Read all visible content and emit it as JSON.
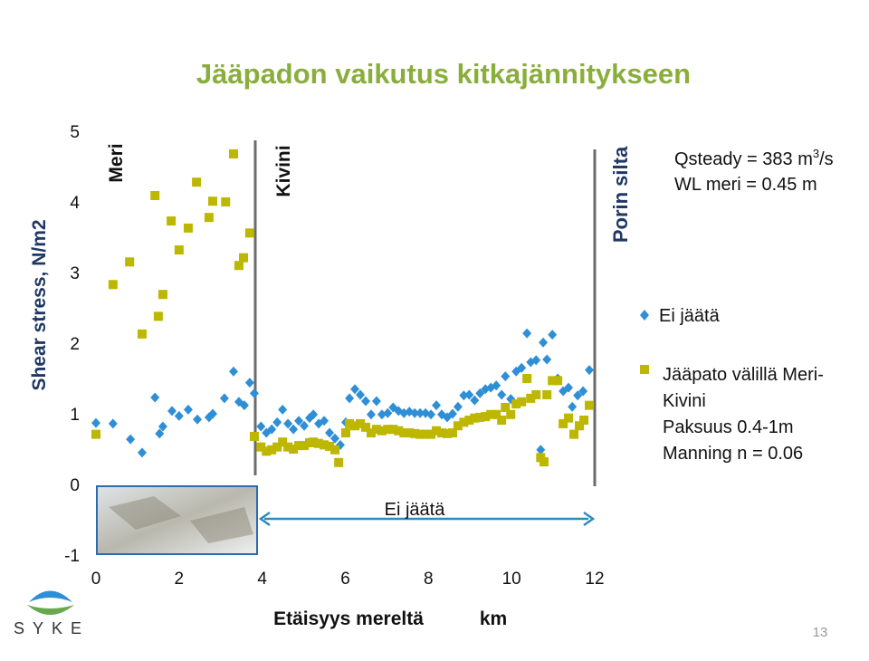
{
  "chart_data": {
    "type": "scatter",
    "title": "Jääpadon vaikutus kitkajännitykseen",
    "ylabel": "Shear stress, N/m2",
    "xlabel": "Etäisyys mereltä",
    "xunit": "km",
    "xlim": [
      0,
      12
    ],
    "ylim": [
      -1,
      5
    ],
    "xticks": [
      0,
      2,
      4,
      6,
      8,
      10,
      12
    ],
    "yticks": [
      5,
      4,
      3,
      2,
      1,
      0,
      -1
    ],
    "region_labels": [
      "Meri",
      "Kivini",
      "Porin silta"
    ],
    "span_label": "Ei jäätä",
    "conditions": [
      [
        "Qsteady = 383 m",
        "3",
        "/s"
      ],
      "WL meri = 0.45 m"
    ],
    "legend_notes": [
      "Paksuus 0.4-1m",
      "Manning n = 0.06"
    ],
    "series": [
      {
        "name": "Ei jäätä",
        "color": "#2f8fd6",
        "marker": "diamond",
        "x": [
          0,
          0.41,
          0.83,
          1.11,
          1.42,
          1.53,
          1.61,
          1.83,
          2.0,
          2.22,
          2.44,
          2.72,
          2.81,
          3.09,
          3.31,
          3.44,
          3.57,
          3.7,
          3.81,
          3.97,
          4.1,
          4.23,
          4.36,
          4.49,
          4.62,
          4.75,
          4.88,
          5.01,
          5.14,
          5.23,
          5.36,
          5.49,
          5.62,
          5.75,
          5.88,
          6.01,
          6.1,
          6.23,
          6.36,
          6.49,
          6.62,
          6.75,
          6.88,
          7.02,
          7.15,
          7.28,
          7.41,
          7.54,
          7.67,
          7.8,
          7.93,
          8.06,
          8.19,
          8.32,
          8.45,
          8.58,
          8.71,
          8.85,
          8.98,
          9.11,
          9.24,
          9.37,
          9.5,
          9.63,
          9.76,
          9.85,
          9.98,
          10.11,
          10.24,
          10.37,
          10.46,
          10.59,
          10.7,
          10.76,
          10.85,
          10.98,
          11.11,
          11.24,
          11.37,
          11.46,
          11.59,
          11.72,
          11.87
        ],
        "values": [
          0.87,
          0.86,
          0.64,
          0.45,
          1.23,
          0.72,
          0.82,
          1.04,
          0.97,
          1.06,
          0.92,
          0.95,
          1.0,
          1.22,
          1.6,
          1.17,
          1.12,
          1.44,
          1.29,
          0.82,
          0.73,
          0.78,
          0.88,
          1.06,
          0.86,
          0.78,
          0.9,
          0.83,
          0.94,
          0.99,
          0.86,
          0.9,
          0.73,
          0.65,
          0.56,
          0.88,
          1.22,
          1.35,
          1.27,
          1.18,
          0.99,
          1.18,
          0.99,
          1.01,
          1.09,
          1.04,
          1.01,
          1.03,
          1.01,
          1.01,
          1.01,
          0.99,
          1.12,
          0.99,
          0.95,
          1.0,
          1.1,
          1.26,
          1.27,
          1.19,
          1.29,
          1.35,
          1.37,
          1.4,
          1.27,
          1.53,
          1.21,
          1.6,
          1.65,
          2.14,
          1.73,
          1.76,
          0.49,
          2.01,
          1.77,
          2.12,
          1.5,
          1.32,
          1.37,
          1.1,
          1.26,
          1.32,
          1.62
        ]
      },
      {
        "name": "Jääpato välillä Meri-Kivini",
        "color": "#bdb700",
        "marker": "square",
        "x": [
          0,
          0.41,
          0.81,
          1.11,
          1.42,
          1.5,
          1.61,
          1.81,
          2.0,
          2.22,
          2.42,
          2.72,
          2.81,
          3.12,
          3.31,
          3.44,
          3.55,
          3.7,
          3.81,
          3.97,
          4.1,
          4.23,
          4.36,
          4.49,
          4.62,
          4.75,
          4.88,
          5.01,
          5.14,
          5.23,
          5.36,
          5.49,
          5.62,
          5.75,
          5.84,
          6.01,
          6.1,
          6.23,
          6.36,
          6.49,
          6.62,
          6.75,
          6.88,
          7.02,
          7.15,
          7.28,
          7.41,
          7.54,
          7.67,
          7.8,
          7.93,
          8.06,
          8.19,
          8.32,
          8.45,
          8.58,
          8.71,
          8.85,
          8.98,
          9.11,
          9.24,
          9.37,
          9.5,
          9.63,
          9.76,
          9.85,
          9.98,
          10.11,
          10.24,
          10.37,
          10.46,
          10.59,
          10.7,
          10.78,
          10.85,
          10.98,
          11.11,
          11.24,
          11.37,
          11.5,
          11.63,
          11.74,
          11.87
        ],
        "values": [
          0.71,
          2.83,
          3.15,
          2.13,
          4.09,
          2.38,
          2.69,
          3.73,
          3.32,
          3.63,
          4.28,
          3.78,
          4.01,
          4.0,
          4.68,
          3.1,
          3.21,
          3.56,
          0.68,
          0.53,
          0.47,
          0.49,
          0.53,
          0.6,
          0.53,
          0.5,
          0.55,
          0.55,
          0.59,
          0.6,
          0.58,
          0.56,
          0.54,
          0.49,
          0.31,
          0.73,
          0.86,
          0.83,
          0.86,
          0.81,
          0.73,
          0.78,
          0.76,
          0.78,
          0.78,
          0.76,
          0.73,
          0.73,
          0.72,
          0.71,
          0.71,
          0.71,
          0.76,
          0.73,
          0.72,
          0.73,
          0.83,
          0.88,
          0.91,
          0.94,
          0.95,
          0.96,
          0.99,
          0.99,
          0.91,
          1.09,
          0.99,
          1.14,
          1.17,
          1.5,
          1.22,
          1.27,
          0.38,
          0.32,
          1.27,
          1.47,
          1.47,
          0.86,
          0.94,
          0.71,
          0.83,
          0.91,
          1.12
        ]
      }
    ]
  },
  "slide": {
    "page_number": "13",
    "logo": "SYKE"
  }
}
